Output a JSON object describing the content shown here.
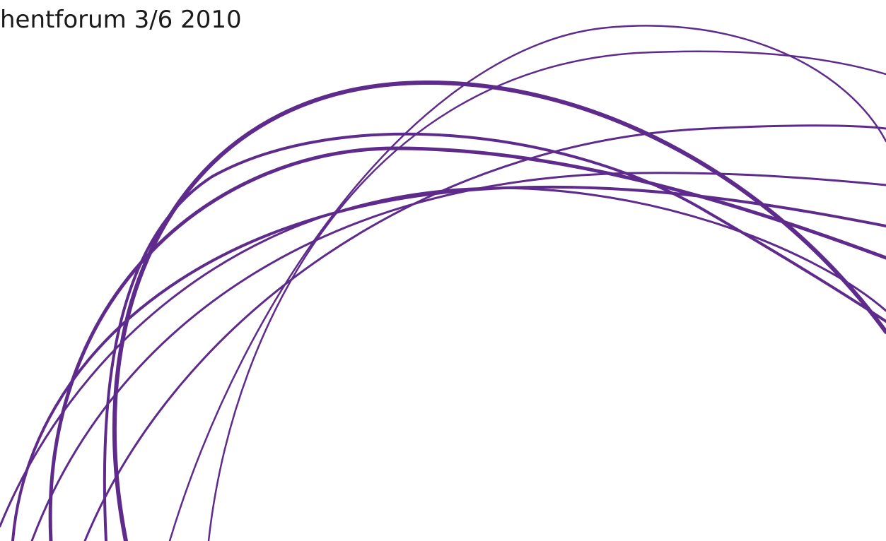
{
  "header": {
    "title": "hentforum 3/6 2010"
  }
}
